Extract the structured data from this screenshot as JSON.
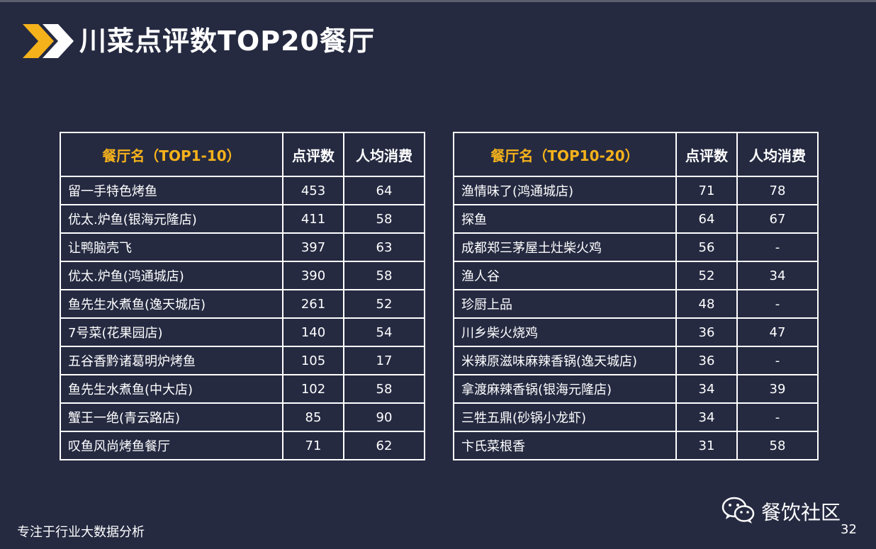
{
  "title": "川菜点评数TOP20餐厅",
  "colors": {
    "background": "#252a41",
    "accent": "#f5b21b",
    "header_name": "#f5b21b",
    "text": "#ffffff"
  },
  "icons": {
    "title_marker": "double-chevron-icon",
    "brand": "wechat-icon"
  },
  "table_left": {
    "headers": [
      "餐厅名（TOP1-10）",
      "点评数",
      "人均消费"
    ],
    "rows": [
      [
        "留一手特色烤鱼",
        "453",
        "64"
      ],
      [
        "优太.炉鱼(银海元隆店)",
        "411",
        "58"
      ],
      [
        "让鸭脑壳飞",
        "397",
        "63"
      ],
      [
        "优太.炉鱼(鸿通城店)",
        "390",
        "58"
      ],
      [
        "鱼先生水煮鱼(逸天城店)",
        "261",
        "52"
      ],
      [
        "7号菜(花果园店)",
        "140",
        "54"
      ],
      [
        "五谷香黔诸葛明炉烤鱼",
        "105",
        "17"
      ],
      [
        "鱼先生水煮鱼(中大店)",
        "102",
        "58"
      ],
      [
        "蟹王一绝(青云路店)",
        "85",
        "90"
      ],
      [
        "叹鱼风尚烤鱼餐厅",
        "71",
        "62"
      ]
    ]
  },
  "table_right": {
    "headers": [
      "餐厅名（TOP10-20）",
      "点评数",
      "人均消费"
    ],
    "rows": [
      [
        "渔情味了(鸿通城店)",
        "71",
        "78"
      ],
      [
        "探鱼",
        "64",
        "67"
      ],
      [
        "成都郑三茅屋土灶柴火鸡",
        "56",
        "-"
      ],
      [
        "渔人谷",
        "52",
        "34"
      ],
      [
        "珍厨上品",
        "48",
        "-"
      ],
      [
        "川乡柴火烧鸡",
        "36",
        "47"
      ],
      [
        "米辣原滋味麻辣香锅(逸天城店)",
        "36",
        "-"
      ],
      [
        "拿渡麻辣香锅(银海元隆店)",
        "34",
        "39"
      ],
      [
        "三牲五鼎(砂锅小龙虾)",
        "34",
        "-"
      ],
      [
        "卞氏菜根香",
        "31",
        "58"
      ]
    ]
  },
  "footer": {
    "tagline": "专注于行业大数据分析",
    "page": "32",
    "brand": "餐饮社区"
  }
}
